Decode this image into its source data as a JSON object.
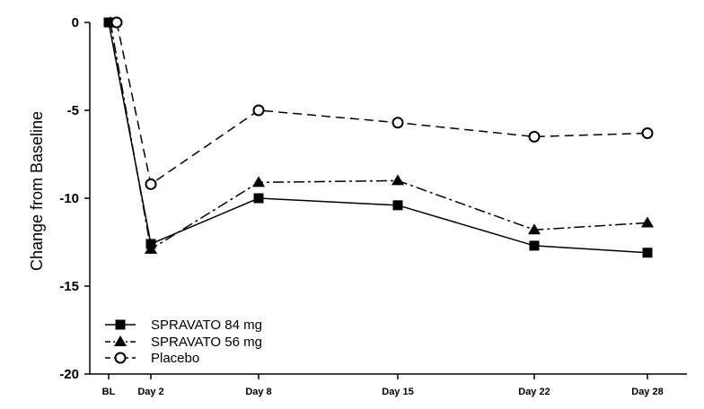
{
  "chart_data": {
    "type": "line",
    "title": "",
    "xlabel": "",
    "ylabel": "Change from Baseline",
    "categories": [
      "BL",
      "Day 2",
      "Day 8",
      "Day 15",
      "Day 22",
      "Day 28"
    ],
    "x_values_days": [
      0,
      2,
      8,
      15,
      22,
      28
    ],
    "ylim": [
      -20,
      0
    ],
    "yticks": [
      0,
      -5,
      -10,
      -15,
      -20
    ],
    "ytick_labels": [
      "0",
      "-5",
      "-10",
      "-15",
      "-20"
    ],
    "grid": false,
    "legend_position": "bottom-left",
    "series": [
      {
        "name": "SPRAVATO 84 mg",
        "values": [
          0,
          -12.6,
          -10.0,
          -10.4,
          -12.7,
          -13.1
        ],
        "marker": "square-filled",
        "line": "solid"
      },
      {
        "name": "SPRAVATO 56 mg",
        "values": [
          0,
          -12.9,
          -9.1,
          -9.0,
          -11.8,
          -11.4
        ],
        "marker": "triangle-filled",
        "line": "dash-dot"
      },
      {
        "name": "Placebo",
        "values": [
          0,
          -9.2,
          -5.0,
          -5.7,
          -6.5,
          -6.3
        ],
        "marker": "circle-open",
        "line": "dashed"
      }
    ]
  }
}
